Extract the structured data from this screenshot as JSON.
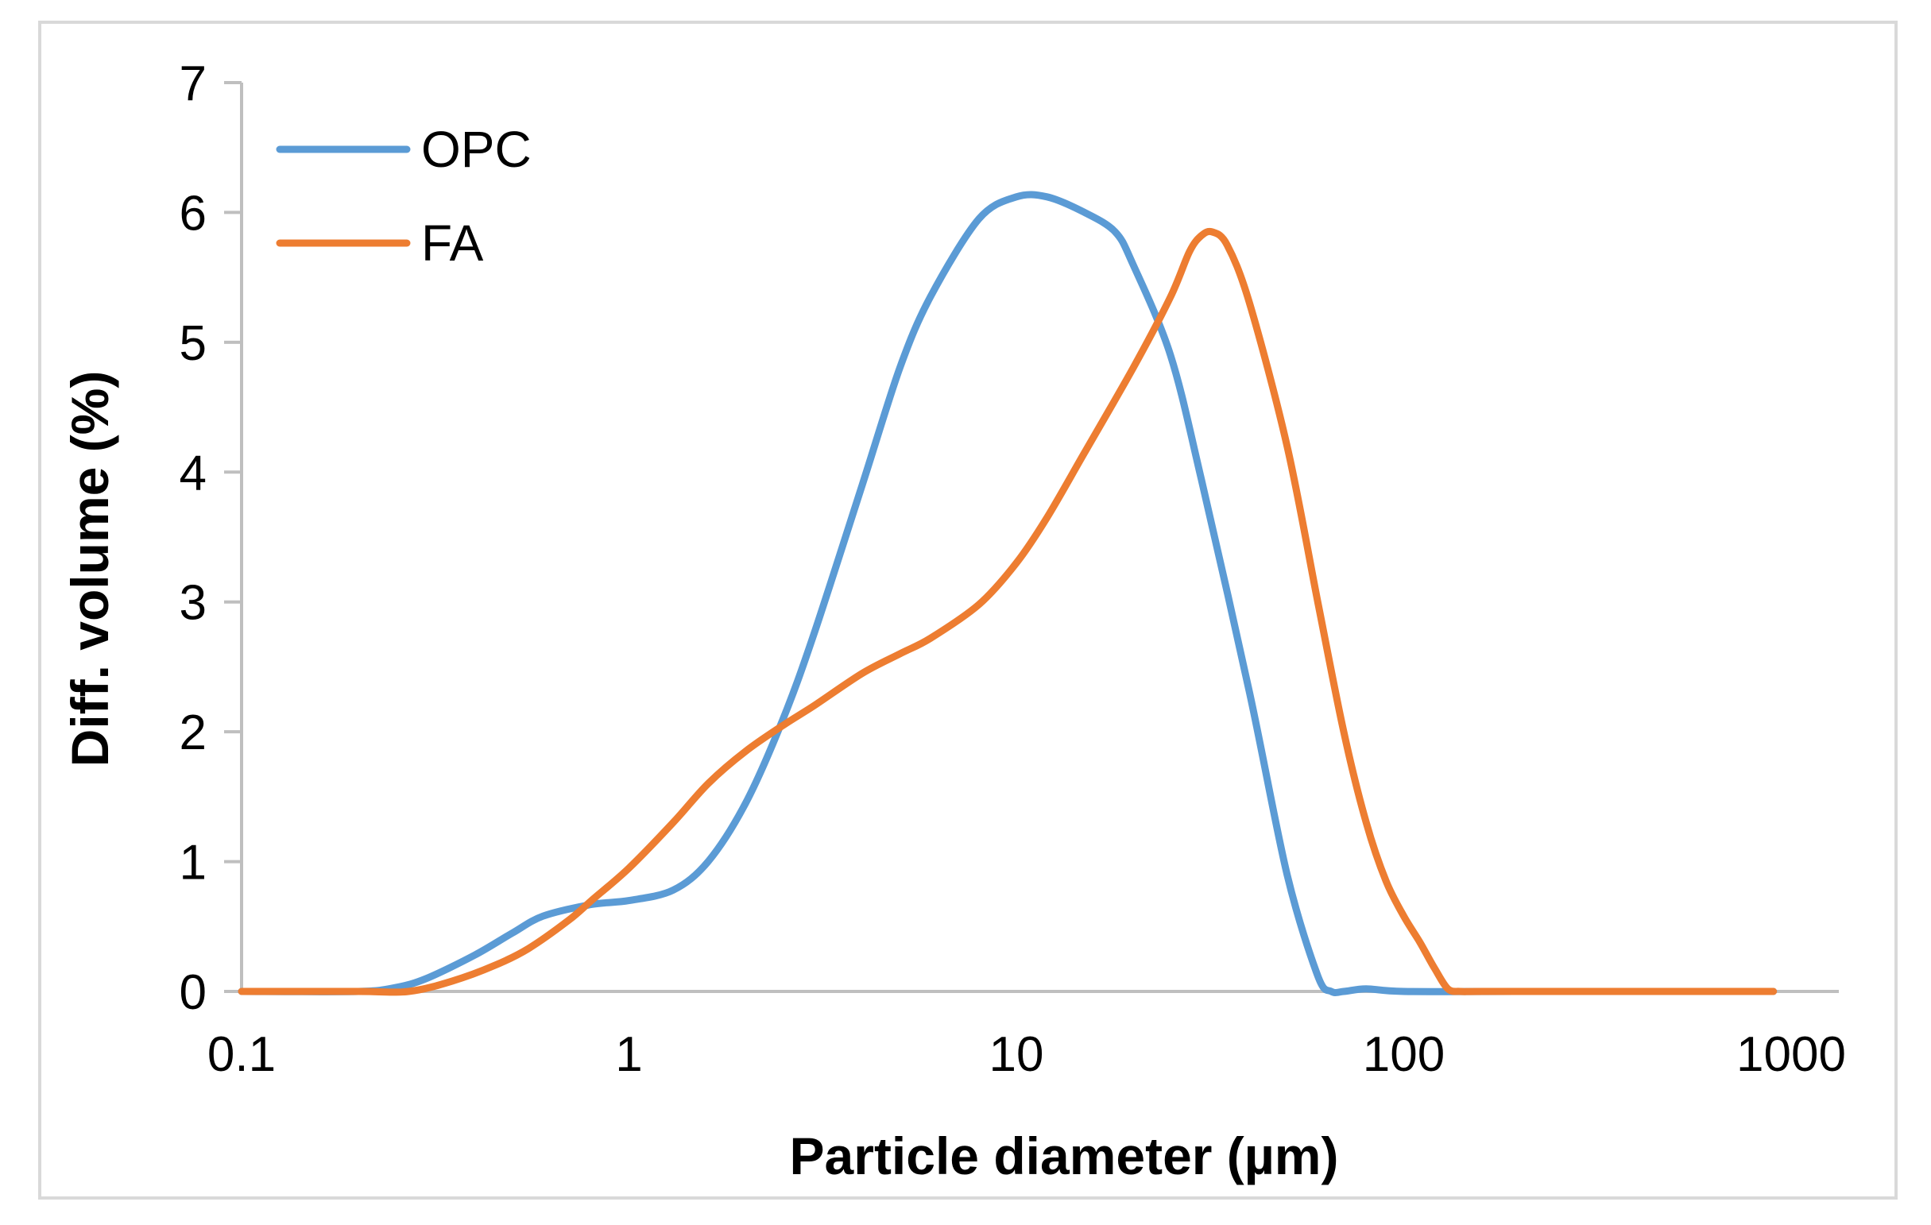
{
  "chart_data": {
    "type": "line",
    "title": "",
    "xlabel": "Particle diameter (µm)",
    "ylabel": "Diff. volume (%)",
    "xscale": "log",
    "xlim": [
      0.1,
      1000
    ],
    "ylim": [
      0,
      7
    ],
    "xticks": [
      0.1,
      1,
      10,
      100,
      1000
    ],
    "xtick_labels": [
      "0.1",
      "1",
      "10",
      "100",
      "1000"
    ],
    "yticks": [
      0,
      1,
      2,
      3,
      4,
      5,
      6,
      7
    ],
    "ytick_labels": [
      "0",
      "1",
      "2",
      "3",
      "4",
      "5",
      "6",
      "7"
    ],
    "grid": false,
    "legend_position": "top-left",
    "series": [
      {
        "name": "OPC",
        "color": "#5b9bd5",
        "x": [
          0.1,
          0.2,
          0.25,
          0.3,
          0.4,
          0.5,
          0.6,
          0.8,
          1.0,
          1.3,
          1.6,
          2.0,
          2.5,
          3.0,
          4.0,
          5.0,
          6.0,
          8.0,
          10.0,
          12.0,
          15.0,
          18.0,
          20.0,
          25.0,
          30.0,
          40.0,
          50.0,
          60.0,
          65.0,
          70.0,
          80.0,
          100.0,
          200.0,
          500.0,
          900.0
        ],
        "y": [
          0,
          0,
          0.03,
          0.1,
          0.28,
          0.45,
          0.58,
          0.67,
          0.7,
          0.78,
          1.0,
          1.45,
          2.1,
          2.75,
          3.9,
          4.8,
          5.35,
          5.95,
          6.12,
          6.12,
          6.0,
          5.85,
          5.6,
          4.9,
          3.95,
          2.3,
          0.9,
          0.12,
          0.0,
          0.0,
          0.02,
          0.0,
          0.0,
          0.0,
          0.0
        ]
      },
      {
        "name": "FA",
        "color": "#ed7d31",
        "x": [
          0.1,
          0.2,
          0.27,
          0.35,
          0.45,
          0.55,
          0.7,
          0.8,
          1.0,
          1.3,
          1.6,
          2.0,
          2.5,
          3.0,
          4.0,
          5.0,
          6.0,
          8.0,
          10.0,
          12.0,
          15.0,
          20.0,
          25.0,
          28.0,
          30.0,
          32.0,
          35.0,
          40.0,
          50.0,
          60.0,
          70.0,
          80.0,
          90.0,
          100.0,
          110.0,
          120.0,
          130.0,
          140.0,
          160.0,
          300.0,
          900.0
        ],
        "y": [
          0,
          0,
          0.0,
          0.08,
          0.2,
          0.33,
          0.55,
          0.7,
          0.95,
          1.3,
          1.6,
          1.85,
          2.05,
          2.2,
          2.45,
          2.6,
          2.72,
          2.98,
          3.3,
          3.65,
          4.15,
          4.8,
          5.35,
          5.7,
          5.82,
          5.85,
          5.75,
          5.3,
          4.2,
          3.0,
          2.0,
          1.3,
          0.85,
          0.58,
          0.38,
          0.18,
          0.02,
          0.0,
          0.0,
          0.0,
          0.0
        ]
      }
    ]
  }
}
